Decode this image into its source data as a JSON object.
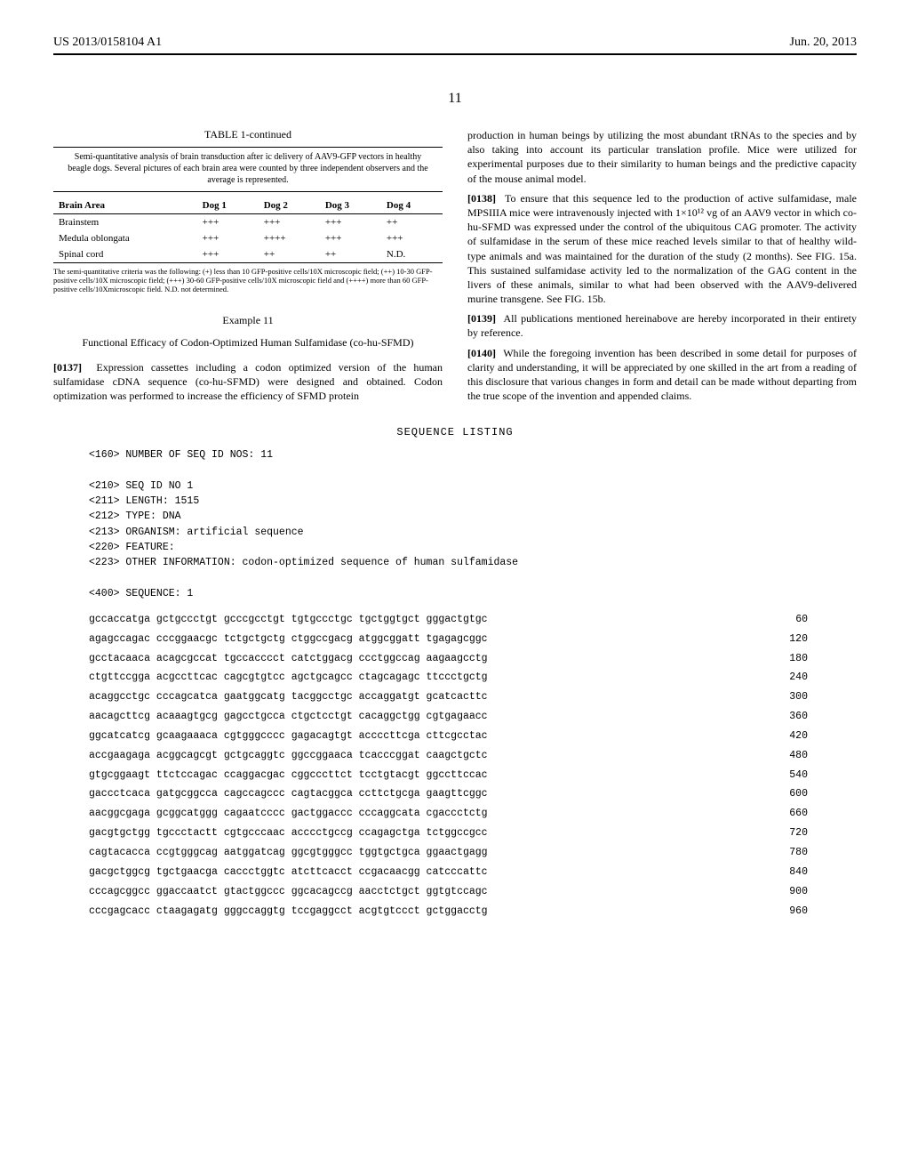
{
  "header": {
    "pub_number": "US 2013/0158104 A1",
    "pub_date": "Jun. 20, 2013"
  },
  "page_number": "11",
  "table": {
    "title": "TABLE 1-continued",
    "caption": "Semi-quantitative analysis of brain transduction after ic delivery of AAV9-GFP vectors in healthy beagle dogs. Several pictures of each brain area were counted by three independent observers and the average is represented.",
    "columns": [
      "Brain Area",
      "Dog 1",
      "Dog 2",
      "Dog 3",
      "Dog 4"
    ],
    "rows": [
      [
        "Brainstem",
        "+++",
        "+++",
        "+++",
        "++"
      ],
      [
        "Medula oblongata",
        "+++",
        "++++",
        "+++",
        "+++"
      ],
      [
        "Spinal cord",
        "+++",
        "++",
        "++",
        "N.D."
      ]
    ],
    "footnote": "The semi-quantitative criteria was the following: (+) less than 10 GFP-positive cells/10X microscopic field; (++) 10-30 GFP-positive cells/10X microscopic field; (+++) 30-60 GFP-positive cells/10X microscopic field and (++++) more than 60 GFP-positive cells/10Xmicroscopic field. N.D. not determined."
  },
  "example": {
    "number": "Example 11",
    "title": "Functional Efficacy of Codon-Optimized Human Sulfamidase (co-hu-SFMD)"
  },
  "paragraphs": {
    "p137": "Expression cassettes including a codon optimized version of the human sulfamidase cDNA sequence (co-hu-SFMD) were designed and obtained. Codon optimization was performed to increase the efficiency of SFMD protein",
    "p_cont": "production in human beings by utilizing the most abundant tRNAs to the species and by also taking into account its particular translation profile. Mice were utilized for experimental purposes due to their similarity to human beings and the predictive capacity of the mouse animal model.",
    "p138": "To ensure that this sequence led to the production of active sulfamidase, male MPSIIIA mice were intravenously injected with 1×10¹² vg of an AAV9 vector in which co-hu-SFMD was expressed under the control of the ubiquitous CAG promoter. The activity of sulfamidase in the serum of these mice reached levels similar to that of healthy wild-type animals and was maintained for the duration of the study (2 months). See FIG. 15a. This sustained sulfamidase activity led to the normalization of the GAG content in the livers of these animals, similar to what had been observed with the AAV9-delivered murine transgene. See FIG. 15b.",
    "p139": "All publications mentioned hereinabove are hereby incorporated in their entirety by reference.",
    "p140": "While the foregoing invention has been described in some detail for purposes of clarity and understanding, it will be appreciated by one skilled in the art from a reading of this disclosure that various changes in form and detail can be made without departing from the true scope of the invention and appended claims."
  },
  "sequence": {
    "title": "SEQUENCE LISTING",
    "meta": [
      "<160> NUMBER OF SEQ ID NOS: 11",
      "",
      "<210> SEQ ID NO 1",
      "<211> LENGTH: 1515",
      "<212> TYPE: DNA",
      "<213> ORGANISM: artificial sequence",
      "<220> FEATURE:",
      "<223> OTHER INFORMATION: codon-optimized sequence of human sulfamidase",
      "",
      "<400> SEQUENCE: 1"
    ],
    "rows": [
      {
        "seq": "gccaccatga gctgccctgt gcccgcctgt tgtgccctgc tgctggtgct gggactgtgc",
        "num": "60"
      },
      {
        "seq": "agagccagac cccggaacgc tctgctgctg ctggccgacg atggcggatt tgagagcggc",
        "num": "120"
      },
      {
        "seq": "gcctacaaca acagcgccat tgccacccct catctggacg ccctggccag aagaagcctg",
        "num": "180"
      },
      {
        "seq": "ctgttccgga acgccttcac cagcgtgtcc agctgcagcc ctagcagagc ttccctgctg",
        "num": "240"
      },
      {
        "seq": "acaggcctgc cccagcatca gaatggcatg tacggcctgc accaggatgt gcatcacttc",
        "num": "300"
      },
      {
        "seq": "aacagcttcg acaaagtgcg gagcctgcca ctgctcctgt cacaggctgg cgtgagaacc",
        "num": "360"
      },
      {
        "seq": "ggcatcatcg gcaagaaaca cgtgggcccc gagacagtgt accccttcga cttcgcctac",
        "num": "420"
      },
      {
        "seq": "accgaagaga acggcagcgt gctgcaggtc ggccggaaca tcacccggat caagctgctc",
        "num": "480"
      },
      {
        "seq": "gtgcggaagt ttctccagac ccaggacgac cggcccttct tcctgtacgt ggccttccac",
        "num": "540"
      },
      {
        "seq": "gaccctcaca gatgcggcca cagccagccc cagtacggca ccttctgcga gaagttcggc",
        "num": "600"
      },
      {
        "seq": "aacggcgaga gcggcatggg cagaatcccc gactggaccc cccaggcata cgaccctctg",
        "num": "660"
      },
      {
        "seq": "gacgtgctgg tgccctactt cgtgcccaac acccctgccg ccagagctga tctggccgcc",
        "num": "720"
      },
      {
        "seq": "cagtacacca ccgtgggcag aatggatcag ggcgtgggcc tggtgctgca ggaactgagg",
        "num": "780"
      },
      {
        "seq": "gacgctggcg tgctgaacga caccctggtc atcttcacct ccgacaacgg catcccattc",
        "num": "840"
      },
      {
        "seq": "cccagcggcc ggaccaatct gtactggccc ggcacagccg aacctctgct ggtgtccagc",
        "num": "900"
      },
      {
        "seq": "cccgagcacc ctaagagatg gggccaggtg tccgaggcct acgtgtccct gctggacctg",
        "num": "960"
      }
    ]
  }
}
